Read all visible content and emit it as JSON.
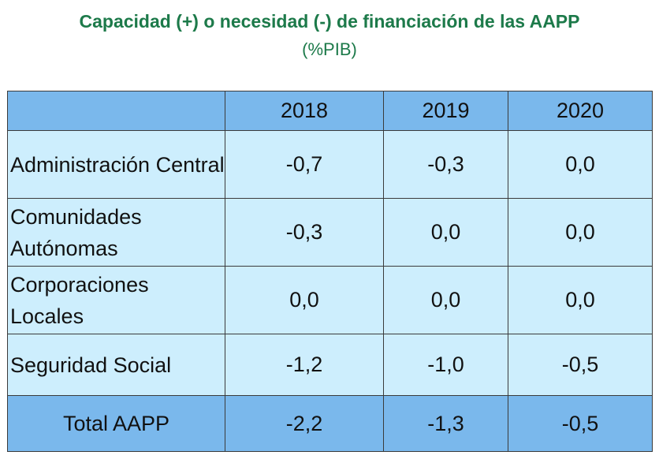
{
  "chart_data": {
    "type": "table",
    "title": "Capacidad (+) o necesidad (-) de financiación de las AAPP",
    "subtitle": "(%PIB)",
    "columns": [
      "",
      "2018",
      "2019",
      "2020"
    ],
    "rows": [
      {
        "label": "Administración Central",
        "values": [
          "-0,7",
          "-0,3",
          "0,0"
        ]
      },
      {
        "label": "Comunidades Autónomas",
        "values": [
          "-0,3",
          "0,0",
          "0,0"
        ]
      },
      {
        "label": "Corporaciones Locales",
        "values": [
          "0,0",
          "0,0",
          "0,0"
        ]
      },
      {
        "label": "Seguridad Social",
        "values": [
          "-1,2",
          "-1,0",
          "-0,5"
        ]
      },
      {
        "label": "Total AAPP",
        "values": [
          "-2,2",
          "-1,3",
          "-0,5"
        ]
      }
    ],
    "colors": {
      "title": "#1d7a4a",
      "header_fill": "#7ab8ec",
      "body_fill": "#cdeefd"
    }
  }
}
